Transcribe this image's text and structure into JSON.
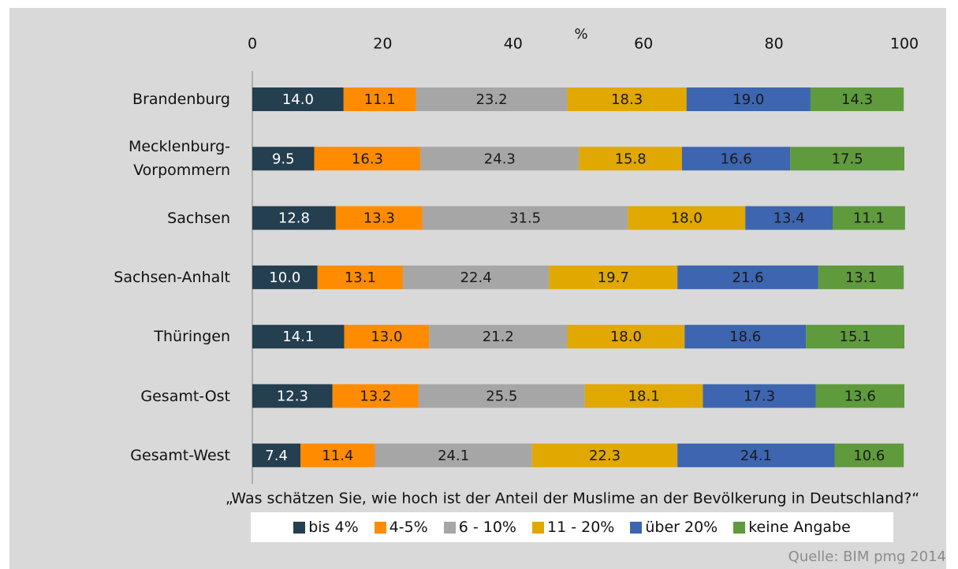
{
  "chart_data": {
    "type": "stacked-bar-horizontal",
    "axis_label": "%",
    "question": "„Was schätzen Sie, wie hoch ist der Anteil der Muslime an der Bevölkerung in Deutschland?“",
    "source": "Quelle: BIM pmg 2014",
    "categories": [
      "Brandenburg",
      "Mecklenburg-\nVorpommern",
      "Sachsen",
      "Sachsen-Anhalt",
      "Thüringen",
      "Gesamt-Ost",
      "Gesamt-West"
    ],
    "series": [
      {
        "name": "bis 4%",
        "color": "#243f4f",
        "values": [
          14.0,
          9.5,
          12.8,
          10.0,
          14.1,
          12.3,
          7.4
        ],
        "value_labels": [
          "14.0",
          "9.5",
          "12.8",
          "10.0",
          "14.1",
          "12.3",
          "7.4"
        ]
      },
      {
        "name": "4-5%",
        "color": "#ff8c00",
        "values": [
          11.1,
          16.3,
          13.3,
          13.1,
          13.0,
          13.2,
          11.4
        ],
        "value_labels": [
          "11.1",
          "16.3",
          "13.3",
          "13.1",
          "13.0",
          "13.2",
          "11.4"
        ]
      },
      {
        "name": "6 - 10%",
        "color": "#a6a6a6",
        "values": [
          23.2,
          24.3,
          31.5,
          22.4,
          21.2,
          25.5,
          24.1
        ],
        "value_labels": [
          "23.2",
          "24.3",
          "31.5",
          "22.4",
          "21.2",
          "25.5",
          "24.1"
        ]
      },
      {
        "name": "11 - 20%",
        "color": "#e0a800",
        "values": [
          18.3,
          15.8,
          18.0,
          19.7,
          18.0,
          18.1,
          22.3
        ],
        "value_labels": [
          "18.3",
          "15.8",
          "18.0",
          "19.7",
          "18.0",
          "18.1",
          "22.3"
        ]
      },
      {
        "name": "über 20%",
        "color": "#3d65b0",
        "values": [
          19.0,
          16.6,
          13.4,
          21.6,
          18.6,
          17.3,
          24.1
        ],
        "value_labels": [
          "19.0",
          "16.6",
          "13.4",
          "21.6",
          "18.6",
          "17.3",
          "24.1"
        ]
      },
      {
        "name": "keine Angabe",
        "color": "#5f9a3c",
        "values": [
          14.3,
          17.5,
          11.1,
          13.1,
          15.1,
          13.6,
          10.6
        ],
        "value_labels": [
          "14.3",
          "17.5",
          "11.1",
          "13.1",
          "15.1",
          "13.6",
          "10.6"
        ]
      }
    ],
    "xlim": [
      0,
      100
    ],
    "xticks": [
      0,
      20,
      40,
      60,
      80,
      100
    ],
    "grid": false,
    "legend": "bottom"
  }
}
